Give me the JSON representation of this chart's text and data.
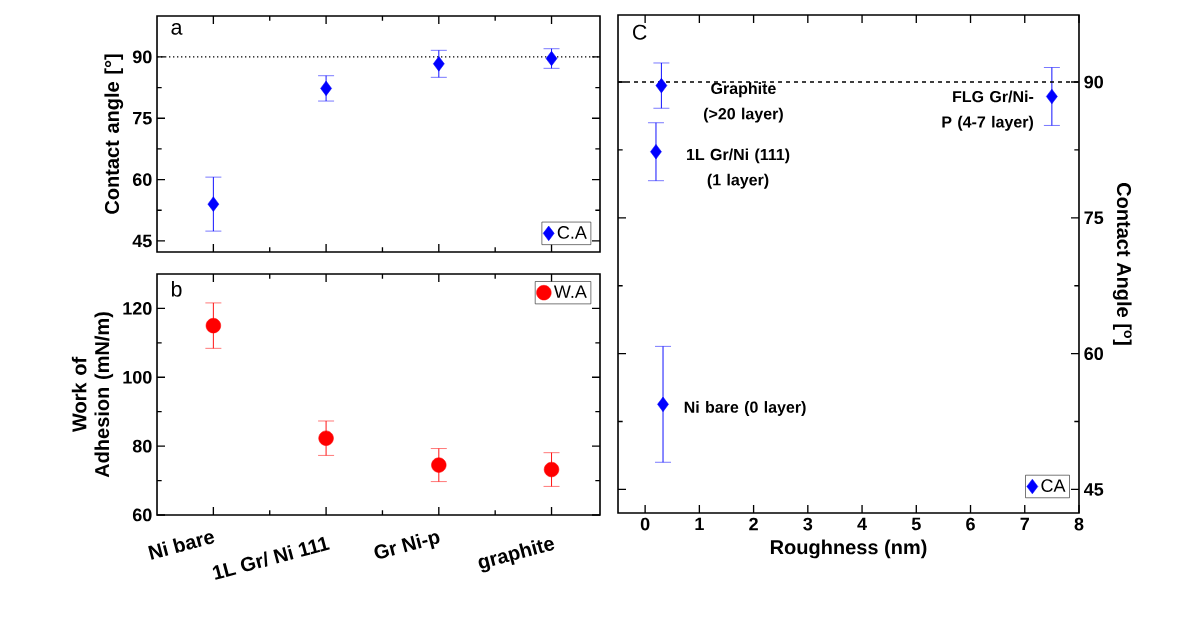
{
  "chart_data": [
    {
      "type": "scatter",
      "ylabel": "Contact angle [°]",
      "annotations": [
        "a"
      ],
      "categories": [
        null,
        null,
        null,
        null
      ],
      "ylim": [
        42.3,
        100
      ],
      "yticks": [
        45,
        60,
        75,
        90
      ],
      "tick_labels": "y",
      "marker": "diamond",
      "legend": "bottom right",
      "series": [
        {
          "name": "C.A",
          "color": "#0000ff",
          "values": [
            54.0,
            82.3,
            88.3,
            89.6
          ],
          "errors": [
            6.6,
            3.1,
            3.3,
            2.4
          ]
        }
      ],
      "ref_lines": [
        {
          "axis": "y",
          "value": 90,
          "line_style": "dotted"
        }
      ]
    },
    {
      "type": "scatter",
      "ylabel": "Work of Adhesion (mN/m)",
      "annotations": [
        "b"
      ],
      "categories": [
        "Ni bare",
        "1L Gr/ Ni 111",
        "Gr Ni-p",
        "graphite"
      ],
      "ylim": [
        60,
        130
      ],
      "yticks": [
        60,
        80,
        100,
        120
      ],
      "marker": "circle",
      "legend": "top right",
      "series": [
        {
          "name": "W.A",
          "color": "#ff0000",
          "values": [
            115.0,
            82.3,
            74.5,
            73.2
          ],
          "errors": [
            6.6,
            5.0,
            4.8,
            4.9
          ]
        }
      ]
    },
    {
      "type": "scatter",
      "xlabel": "Roughness (nm)",
      "y2label": "Contact Angle [$^{o}$]",
      "x": [
        0.3,
        0.2,
        0.33,
        7.5
      ],
      "xlim": [
        -0.5,
        8
      ],
      "xticks": [
        0,
        1,
        2,
        3,
        4,
        5,
        6,
        7,
        8
      ],
      "y2lim": [
        42.4,
        97.4
      ],
      "y2ticks": [
        45,
        60,
        75,
        90
      ],
      "marker": "diamond",
      "legend": "bottom right",
      "series": [
        {
          "name": "CA",
          "color": "#0000ff",
          "axis": "y2",
          "values": [
            89.6,
            82.3,
            54.4,
            88.4
          ],
          "errors": [
            2.5,
            3.2,
            6.4,
            3.2
          ]
        }
      ],
      "ref_lines": [
        {
          "axis": "y2",
          "value": 90,
          "line_style": "dashed"
        }
      ],
      "annotations": [
        "C",
        "Graphite (>20 layer)",
        "1L Gr/Ni (111) (1 layer)",
        "Ni bare (0 layer)",
        "FLG Gr/Ni-P (4-7 layer)"
      ]
    }
  ]
}
